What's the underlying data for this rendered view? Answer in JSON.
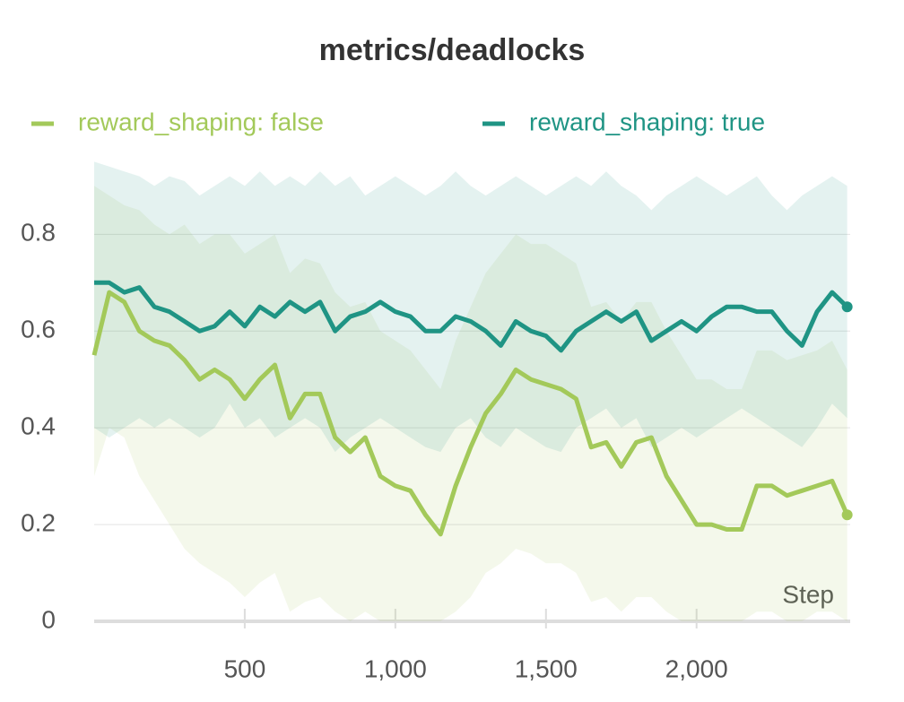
{
  "chart_data": {
    "type": "line",
    "title": "metrics/deadlocks",
    "xlabel": "Step",
    "x": [
      0,
      50,
      100,
      150,
      200,
      250,
      300,
      350,
      400,
      450,
      500,
      550,
      600,
      650,
      700,
      750,
      800,
      850,
      900,
      950,
      1000,
      1050,
      1100,
      1150,
      1200,
      1250,
      1300,
      1350,
      1400,
      1450,
      1500,
      1550,
      1600,
      1650,
      1700,
      1750,
      1800,
      1850,
      1900,
      1950,
      2000,
      2050,
      2100,
      2150,
      2200,
      2250,
      2300,
      2350,
      2400,
      2450,
      2500
    ],
    "xlim": [
      0,
      2510
    ],
    "xticks": [
      500,
      {
        "value": 1000,
        "label": "1,000"
      },
      {
        "value": 1500,
        "label": "1,500"
      },
      {
        "value": 2000,
        "label": "2,000"
      }
    ],
    "ylim": [
      0,
      0.96
    ],
    "yticks": [
      0,
      0.2,
      0.4,
      0.6,
      0.8
    ],
    "grid": true,
    "series": [
      {
        "name": "reward_shaping: false",
        "color": "#a3c95a",
        "values": [
          0.55,
          0.68,
          0.66,
          0.6,
          0.58,
          0.57,
          0.54,
          0.5,
          0.52,
          0.5,
          0.46,
          0.5,
          0.53,
          0.42,
          0.47,
          0.47,
          0.38,
          0.35,
          0.38,
          0.3,
          0.28,
          0.27,
          0.22,
          0.18,
          0.28,
          0.36,
          0.43,
          0.47,
          0.52,
          0.5,
          0.49,
          0.48,
          0.46,
          0.36,
          0.37,
          0.32,
          0.37,
          0.38,
          0.3,
          0.25,
          0.2,
          0.2,
          0.19,
          0.19,
          0.28,
          0.28,
          0.26,
          0.27,
          0.28,
          0.29,
          0.22
        ],
        "min": [
          0.3,
          0.4,
          0.38,
          0.3,
          0.25,
          0.2,
          0.15,
          0.12,
          0.1,
          0.08,
          0.05,
          0.08,
          0.1,
          0.02,
          0.04,
          0.05,
          0.02,
          0,
          0.02,
          0,
          0,
          0,
          0,
          0,
          0.02,
          0.05,
          0.1,
          0.12,
          0.15,
          0.14,
          0.12,
          0.12,
          0.1,
          0.04,
          0.05,
          0.02,
          0.05,
          0.05,
          0.02,
          0,
          0,
          0,
          0,
          0,
          0.02,
          0.02,
          0,
          0,
          0.02,
          0.02,
          0
        ],
        "max": [
          0.9,
          0.88,
          0.86,
          0.85,
          0.82,
          0.8,
          0.82,
          0.78,
          0.8,
          0.8,
          0.76,
          0.78,
          0.8,
          0.72,
          0.75,
          0.74,
          0.68,
          0.65,
          0.66,
          0.6,
          0.58,
          0.56,
          0.52,
          0.48,
          0.58,
          0.65,
          0.72,
          0.76,
          0.8,
          0.78,
          0.78,
          0.76,
          0.74,
          0.65,
          0.66,
          0.62,
          0.66,
          0.66,
          0.6,
          0.55,
          0.5,
          0.5,
          0.48,
          0.48,
          0.56,
          0.56,
          0.54,
          0.55,
          0.56,
          0.58,
          0.52
        ]
      },
      {
        "name": "reward_shaping: true",
        "color": "#1f9484",
        "values": [
          0.7,
          0.7,
          0.68,
          0.69,
          0.65,
          0.64,
          0.62,
          0.6,
          0.61,
          0.64,
          0.61,
          0.65,
          0.63,
          0.66,
          0.64,
          0.66,
          0.6,
          0.63,
          0.64,
          0.66,
          0.64,
          0.63,
          0.6,
          0.6,
          0.63,
          0.62,
          0.6,
          0.57,
          0.62,
          0.6,
          0.59,
          0.56,
          0.6,
          0.62,
          0.64,
          0.62,
          0.64,
          0.58,
          0.6,
          0.62,
          0.6,
          0.63,
          0.65,
          0.65,
          0.64,
          0.64,
          0.6,
          0.57,
          0.64,
          0.68,
          0.65
        ],
        "min": [
          0.4,
          0.38,
          0.4,
          0.42,
          0.4,
          0.42,
          0.4,
          0.38,
          0.4,
          0.45,
          0.4,
          0.42,
          0.38,
          0.4,
          0.42,
          0.4,
          0.35,
          0.38,
          0.4,
          0.42,
          0.4,
          0.38,
          0.36,
          0.35,
          0.4,
          0.42,
          0.38,
          0.36,
          0.4,
          0.38,
          0.36,
          0.35,
          0.4,
          0.42,
          0.44,
          0.4,
          0.42,
          0.36,
          0.38,
          0.4,
          0.38,
          0.4,
          0.42,
          0.44,
          0.42,
          0.4,
          0.38,
          0.36,
          0.4,
          0.45,
          0.42
        ],
        "max": [
          0.95,
          0.94,
          0.93,
          0.92,
          0.9,
          0.92,
          0.91,
          0.88,
          0.9,
          0.92,
          0.9,
          0.93,
          0.9,
          0.92,
          0.9,
          0.93,
          0.9,
          0.92,
          0.88,
          0.9,
          0.92,
          0.9,
          0.88,
          0.9,
          0.93,
          0.9,
          0.88,
          0.9,
          0.92,
          0.9,
          0.88,
          0.9,
          0.92,
          0.9,
          0.93,
          0.9,
          0.88,
          0.85,
          0.88,
          0.9,
          0.92,
          0.9,
          0.88,
          0.9,
          0.92,
          0.88,
          0.85,
          0.88,
          0.9,
          0.92,
          0.9
        ]
      }
    ]
  }
}
